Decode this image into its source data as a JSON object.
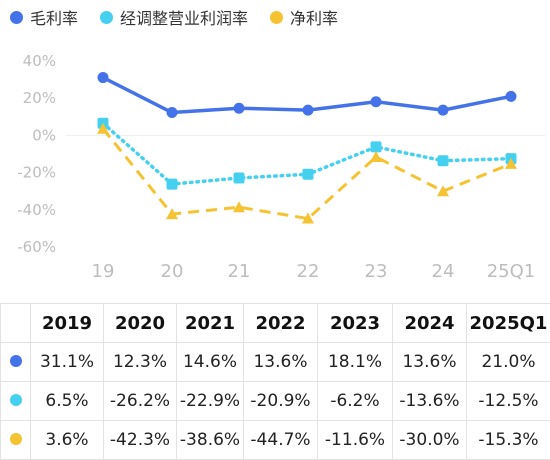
{
  "legend": [
    {
      "label": "毛利率",
      "color": "#4472e8"
    },
    {
      "label": "经调整营业利润率",
      "color": "#45d0f0"
    },
    {
      "label": "净利率",
      "color": "#f5c331"
    }
  ],
  "chart_data": {
    "type": "line",
    "categories": [
      "19",
      "20",
      "21",
      "22",
      "23",
      "24",
      "25Q1"
    ],
    "ylim": [
      -60,
      40
    ],
    "yticks": [
      "40%",
      "20%",
      "0%",
      "-20%",
      "-40%",
      "-60%"
    ],
    "series": [
      {
        "name": "毛利率",
        "color": "#4472e8",
        "style": "solid",
        "marker": "circle",
        "values": [
          31.1,
          12.3,
          14.6,
          13.6,
          18.1,
          13.6,
          21.0
        ]
      },
      {
        "name": "经调整营业利润率",
        "color": "#45d0f0",
        "style": "dotted",
        "marker": "square",
        "values": [
          6.5,
          -26.2,
          -22.9,
          -20.9,
          -6.2,
          -13.6,
          -12.5
        ]
      },
      {
        "name": "净利率",
        "color": "#f5c331",
        "style": "dashed",
        "marker": "triangle",
        "values": [
          3.6,
          -42.3,
          -38.6,
          -44.7,
          -11.6,
          -30.0,
          -15.3
        ]
      }
    ]
  },
  "table": {
    "headers": [
      "2019",
      "2020",
      "2021",
      "2022",
      "2023",
      "2024",
      "2025Q1"
    ],
    "rows": [
      {
        "color": "#4472e8",
        "cells": [
          "31.1%",
          "12.3%",
          "14.6%",
          "13.6%",
          "18.1%",
          "13.6%",
          "21.0%"
        ]
      },
      {
        "color": "#45d0f0",
        "cells": [
          "6.5%",
          "-26.2%",
          "-22.9%",
          "-20.9%",
          "-6.2%",
          "-13.6%",
          "-12.5%"
        ]
      },
      {
        "color": "#f5c331",
        "cells": [
          "3.6%",
          "-42.3%",
          "-38.6%",
          "-44.7%",
          "-11.6%",
          "-30.0%",
          "-15.3%"
        ]
      }
    ]
  }
}
